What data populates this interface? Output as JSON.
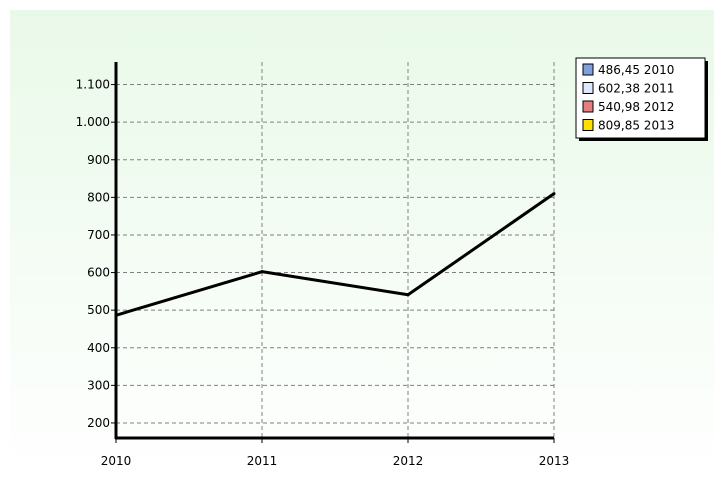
{
  "chart_data": {
    "type": "line",
    "title": "",
    "xlabel": "",
    "ylabel": "",
    "categories": [
      "2010",
      "2011",
      "2012",
      "2013"
    ],
    "x_ticks": [
      "2010",
      "2011",
      "2012",
      "2013"
    ],
    "y_ticks": [
      "200",
      "300",
      "400",
      "500",
      "600",
      "700",
      "800",
      "900",
      "1.000",
      "1.100"
    ],
    "ylim": [
      160,
      1160
    ],
    "grid": true,
    "legend_placement": "top-right",
    "series": [
      {
        "values": [
          486.45,
          602.38,
          540.98,
          809.85
        ],
        "color": "#000000"
      }
    ],
    "legend": [
      {
        "label": "486,45 2010",
        "color": "#7f9fdf"
      },
      {
        "label": "602,38 2011",
        "color": "#dfe7ff"
      },
      {
        "label": "540,98 2012",
        "color": "#e57f7f"
      },
      {
        "label": "809,85 2013",
        "color": "#ffe000"
      }
    ],
    "colors": {
      "page_background": "#ffffff",
      "plot_gradient_top": "#e9f9e9",
      "plot_gradient_bottom": "#ffffff",
      "grid": "#808080",
      "axis": "#000000"
    }
  }
}
